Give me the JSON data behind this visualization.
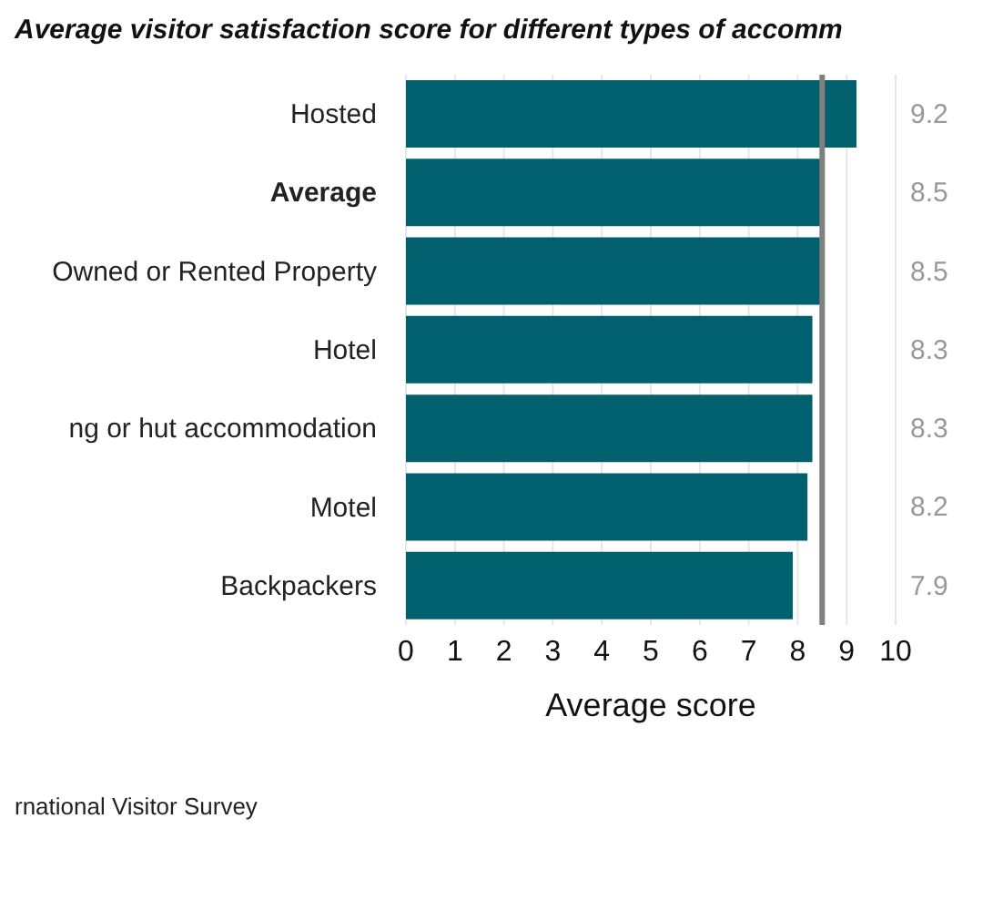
{
  "chart_data": {
    "type": "bar",
    "orientation": "horizontal",
    "title": "Average visitor satisfaction score for different types of accomm",
    "categories": [
      "Hosted",
      "Average",
      "Owned or Rented Property",
      "Hotel",
      "ng or hut accommodation",
      "Motel",
      "Backpackers"
    ],
    "values": [
      9.2,
      8.5,
      8.5,
      8.3,
      8.3,
      8.2,
      7.9
    ],
    "color": "#00606e",
    "data_labels": true,
    "xlim": [
      0,
      10
    ],
    "xticks": [
      0,
      1,
      2,
      3,
      4,
      5,
      6,
      7,
      8,
      9,
      10
    ],
    "xlabel": "Average score",
    "grid": "x",
    "ref_lines": [
      {
        "axis": "x",
        "value": 8.5,
        "color": "#808080"
      }
    ],
    "annotations": [
      "rnational Visitor Survey"
    ]
  }
}
